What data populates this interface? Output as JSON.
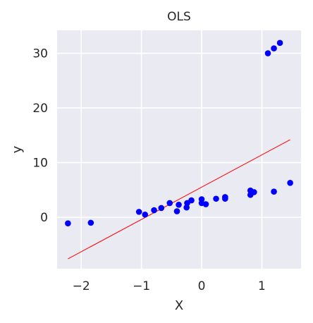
{
  "chart_data": {
    "type": "scatter",
    "title": "OLS",
    "xlabel": "X",
    "ylabel": "y",
    "xlim": [
      -2.4,
      1.65
    ],
    "ylim": [
      -9.4,
      34.2
    ],
    "xticks": [
      -2,
      -1,
      0,
      1
    ],
    "yticks": [
      0,
      10,
      20,
      30
    ],
    "grid": true,
    "colors": {
      "points": "#0000ff",
      "fit_line": "#ff0000",
      "background": "#eaeaf2",
      "grid": "#ffffff"
    },
    "series": [
      {
        "type": "scatter",
        "points": [
          [
            -2.22,
            -1.1
          ],
          [
            -1.84,
            -1.0
          ],
          [
            -1.04,
            1.0
          ],
          [
            -0.94,
            0.5
          ],
          [
            -0.79,
            1.3
          ],
          [
            -0.67,
            1.7
          ],
          [
            -0.53,
            2.6
          ],
          [
            -0.41,
            1.1
          ],
          [
            -0.38,
            2.3
          ],
          [
            -0.25,
            1.8
          ],
          [
            -0.24,
            2.6
          ],
          [
            -0.17,
            3.1
          ],
          [
            0.0,
            2.6
          ],
          [
            0.0,
            3.3
          ],
          [
            0.07,
            2.4
          ],
          [
            0.24,
            3.4
          ],
          [
            0.39,
            3.4
          ],
          [
            0.39,
            3.7
          ],
          [
            0.81,
            4.1
          ],
          [
            0.81,
            4.9
          ],
          [
            0.87,
            4.6
          ],
          [
            1.2,
            4.7
          ],
          [
            1.47,
            6.3
          ],
          [
            1.1,
            30.0
          ],
          [
            1.2,
            30.9
          ],
          [
            1.3,
            31.9
          ]
        ]
      },
      {
        "type": "line",
        "points": [
          [
            -2.22,
            -7.6
          ],
          [
            1.47,
            14.2
          ]
        ]
      }
    ]
  }
}
